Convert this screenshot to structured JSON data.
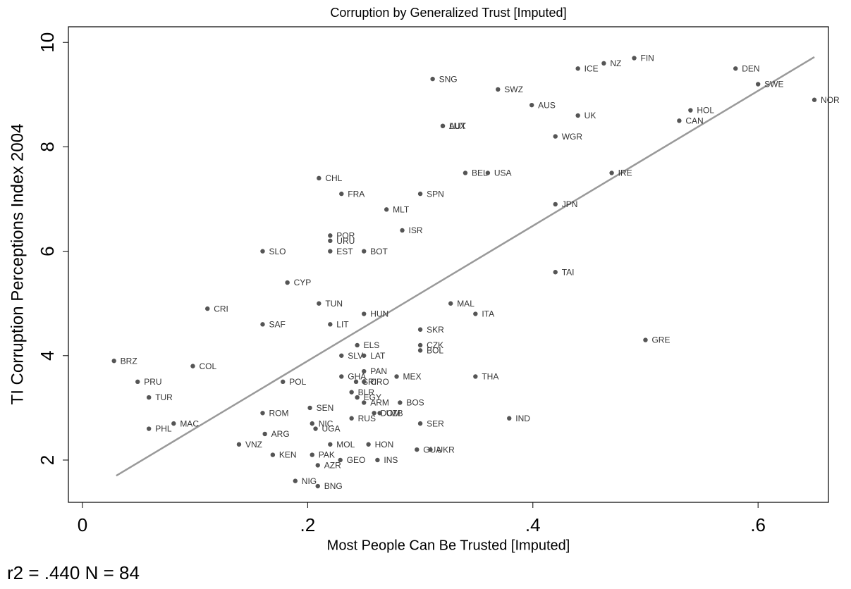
{
  "chart_data": {
    "type": "scatter",
    "title": "Corruption by Generalized Trust [Imputed]",
    "x_label": "Most People Can Be Trusted [Imputed]",
    "y_label": "TI Corruption Perceptions Index 2004",
    "note": "r2 = .440 N = 84",
    "color": "#555555",
    "labels": [
      "FIN",
      "NZ",
      "ICE",
      "DEN",
      "SWE",
      "NOR",
      "SNG",
      "SWZ",
      "AUS",
      "UK",
      "HOL",
      "CAN",
      "AUT",
      "LUX",
      "WGR",
      "BEL",
      "USA",
      "IRE",
      "CHL",
      "FRA",
      "SPN",
      "MLT",
      "JPN",
      "ISR",
      "POR",
      "URU",
      "SLO",
      "EST",
      "BOT",
      "TAI",
      "CYP",
      "TUN",
      "MAL",
      "CRI",
      "HUN",
      "ITA",
      "SAF",
      "LIT",
      "SKR",
      "GRE",
      "ELS",
      "CZK",
      "BOL",
      "SLV",
      "LAT",
      "BRZ",
      "COL",
      "PAN",
      "GHA",
      "MEX",
      "THA",
      "SRI",
      "CRO",
      "PRU",
      "POL",
      "BLR",
      "EGY",
      "TUR",
      "ARM",
      "BOS",
      "SEN",
      "ROM",
      "DOM",
      "UZB",
      "RUS",
      "IND",
      "MAC",
      "NIC",
      "SER",
      "PHL",
      "UGA",
      "ARG",
      "VNZ",
      "MOL",
      "HON",
      "GUA",
      "UKR",
      "KEN",
      "PAK",
      "GEO",
      "INS",
      "AZR",
      "NIG",
      "BNG"
    ],
    "x": [
      0.49,
      0.463,
      0.44,
      0.58,
      0.6,
      0.65,
      0.311,
      0.369,
      0.399,
      0.44,
      0.54,
      0.53,
      0.32,
      0.32,
      0.42,
      0.34,
      0.36,
      0.47,
      0.21,
      0.23,
      0.3,
      0.27,
      0.42,
      0.284,
      0.22,
      0.22,
      0.16,
      0.22,
      0.25,
      0.42,
      0.182,
      0.21,
      0.327,
      0.111,
      0.25,
      0.349,
      0.16,
      0.22,
      0.3,
      0.5,
      0.244,
      0.3,
      0.3,
      0.23,
      0.25,
      0.028,
      0.098,
      0.25,
      0.23,
      0.279,
      0.349,
      0.243,
      0.25,
      0.049,
      0.178,
      0.239,
      0.244,
      0.059,
      0.25,
      0.282,
      0.202,
      0.16,
      0.259,
      0.264,
      0.239,
      0.379,
      0.081,
      0.204,
      0.3,
      0.059,
      0.207,
      0.162,
      0.139,
      0.22,
      0.254,
      0.297,
      0.309,
      0.169,
      0.204,
      0.229,
      0.262,
      0.209,
      0.189,
      0.209
    ],
    "values": [
      9.7,
      9.6,
      9.5,
      9.5,
      9.2,
      8.9,
      9.3,
      9.1,
      8.8,
      8.6,
      8.7,
      8.5,
      8.4,
      8.4,
      8.2,
      7.5,
      7.5,
      7.5,
      7.4,
      7.1,
      7.1,
      6.8,
      6.9,
      6.4,
      6.3,
      6.2,
      6.0,
      6.0,
      6.0,
      5.6,
      5.4,
      5.0,
      5.0,
      4.9,
      4.8,
      4.8,
      4.6,
      4.6,
      4.5,
      4.3,
      4.2,
      4.2,
      4.1,
      4.0,
      4.0,
      3.9,
      3.8,
      3.7,
      3.6,
      3.6,
      3.6,
      3.5,
      3.5,
      3.5,
      3.5,
      3.3,
      3.2,
      3.2,
      3.1,
      3.1,
      3.0,
      2.9,
      2.9,
      2.9,
      2.8,
      2.8,
      2.7,
      2.7,
      2.7,
      2.6,
      2.6,
      2.5,
      2.3,
      2.3,
      2.3,
      2.2,
      2.2,
      2.1,
      2.1,
      2.0,
      2.0,
      1.9,
      1.6,
      1.5
    ],
    "fit": {
      "x": [
        0.03,
        0.65
      ],
      "values": [
        1.7,
        9.72
      ],
      "color": "#999999"
    },
    "xlim": [
      -0.0125,
      0.6625
    ],
    "ylim": [
      1.19,
      10.3
    ],
    "xticks": [
      0,
      {
        "value": 0.2,
        "label": ".2"
      },
      {
        "value": 0.4,
        "label": ".4"
      },
      {
        "value": 0.6,
        "label": ".6"
      }
    ],
    "yticks": [
      2,
      4,
      6,
      8,
      10
    ]
  }
}
